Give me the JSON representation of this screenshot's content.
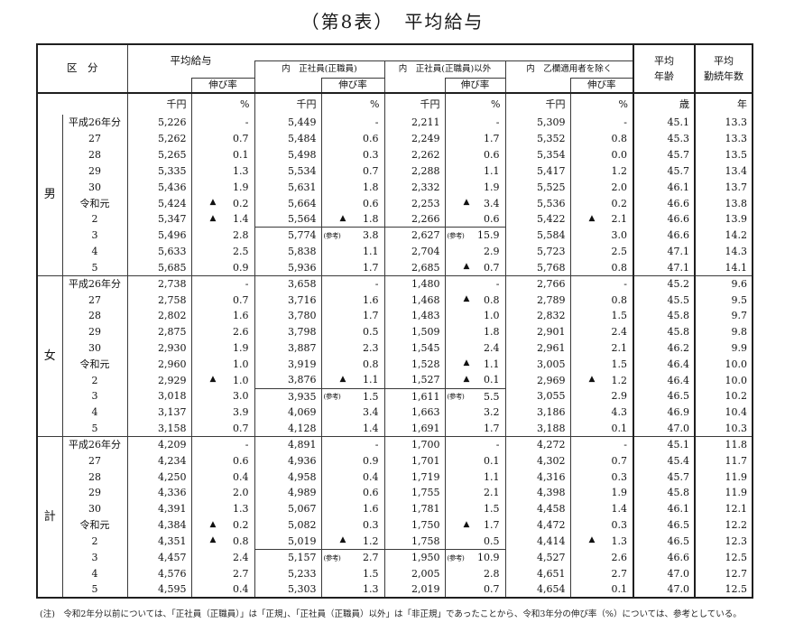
{
  "title": "（第8表）　平均給与",
  "table": {
    "header": {
      "kubun": "区　分",
      "groups": [
        {
          "label": "平均給与",
          "rate": "伸び率"
        },
        {
          "label": "内　正社員(正職員)",
          "rate": "伸び率"
        },
        {
          "label": "内　正社員(正職員)以外",
          "rate": "伸び率"
        },
        {
          "label": "内　乙欄適用者を除く",
          "rate": "伸び率"
        }
      ],
      "age": "平均\n年齢",
      "service": "平均\n勤続年数"
    },
    "units": [
      "千円",
      "%",
      "千円",
      "%",
      "千円",
      "%",
      "千円",
      "%",
      "歳",
      "年"
    ],
    "sections": [
      {
        "group": "男",
        "rows": [
          [
            "平成26年分",
            "5,226",
            "-",
            "5,449",
            "-",
            "2,211",
            "-",
            "5,309",
            "-",
            "45.1",
            "13.3"
          ],
          [
            "27",
            "5,262",
            "0.7",
            "5,484",
            "0.6",
            "2,249",
            "1.7",
            "5,352",
            "0.8",
            "45.3",
            "13.3"
          ],
          [
            "28",
            "5,265",
            "0.1",
            "5,498",
            "0.3",
            "2,262",
            "0.6",
            "5,354",
            "0.0",
            "45.7",
            "13.5"
          ],
          [
            "29",
            "5,335",
            "1.3",
            "5,534",
            "0.7",
            "2,288",
            "1.1",
            "5,417",
            "1.2",
            "45.7",
            "13.4"
          ],
          [
            "30",
            "5,436",
            "1.9",
            "5,631",
            "1.8",
            "2,332",
            "1.9",
            "5,525",
            "2.0",
            "46.1",
            "13.7"
          ],
          [
            "令和元",
            "5,424",
            "▲0.2",
            "5,664",
            "0.6",
            "2,253",
            "▲3.4",
            "5,536",
            "0.2",
            "46.6",
            "13.8"
          ],
          [
            "2",
            "5,347",
            "▲1.4",
            "5,564",
            "▲1.8",
            "2,266",
            "0.6",
            "5,422",
            "▲2.1",
            "46.6",
            "13.9"
          ],
          [
            "3",
            "5,496",
            "2.8",
            "5,774",
            "(参考)3.8",
            "2,627",
            "(参考)15.9",
            "5,584",
            "3.0",
            "46.6",
            "14.2"
          ],
          [
            "4",
            "5,633",
            "2.5",
            "5,838",
            "1.1",
            "2,704",
            "2.9",
            "5,723",
            "2.5",
            "47.1",
            "14.3"
          ],
          [
            "5",
            "5,685",
            "0.9",
            "5,936",
            "1.7",
            "2,685",
            "▲0.7",
            "5,768",
            "0.8",
            "47.1",
            "14.1"
          ]
        ]
      },
      {
        "group": "女",
        "rows": [
          [
            "平成26年分",
            "2,738",
            "-",
            "3,658",
            "-",
            "1,480",
            "-",
            "2,766",
            "-",
            "45.2",
            "9.6"
          ],
          [
            "27",
            "2,758",
            "0.7",
            "3,716",
            "1.6",
            "1,468",
            "▲0.8",
            "2,789",
            "0.8",
            "45.5",
            "9.5"
          ],
          [
            "28",
            "2,802",
            "1.6",
            "3,780",
            "1.7",
            "1,483",
            "1.0",
            "2,832",
            "1.5",
            "45.8",
            "9.7"
          ],
          [
            "29",
            "2,875",
            "2.6",
            "3,798",
            "0.5",
            "1,509",
            "1.8",
            "2,901",
            "2.4",
            "45.8",
            "9.8"
          ],
          [
            "30",
            "2,930",
            "1.9",
            "3,887",
            "2.3",
            "1,545",
            "2.4",
            "2,961",
            "2.1",
            "46.2",
            "9.9"
          ],
          [
            "令和元",
            "2,960",
            "1.0",
            "3,919",
            "0.8",
            "1,528",
            "▲1.1",
            "3,005",
            "1.5",
            "46.4",
            "10.0"
          ],
          [
            "2",
            "2,929",
            "▲1.0",
            "3,876",
            "▲1.1",
            "1,527",
            "▲0.1",
            "2,969",
            "▲1.2",
            "46.4",
            "10.0"
          ],
          [
            "3",
            "3,018",
            "3.0",
            "3,935",
            "(参考)1.5",
            "1,611",
            "(参考)5.5",
            "3,055",
            "2.9",
            "46.5",
            "10.2"
          ],
          [
            "4",
            "3,137",
            "3.9",
            "4,069",
            "3.4",
            "1,663",
            "3.2",
            "3,186",
            "4.3",
            "46.9",
            "10.4"
          ],
          [
            "5",
            "3,158",
            "0.7",
            "4,128",
            "1.4",
            "1,691",
            "1.7",
            "3,188",
            "0.1",
            "47.0",
            "10.3"
          ]
        ]
      },
      {
        "group": "計",
        "rows": [
          [
            "平成26年分",
            "4,209",
            "-",
            "4,891",
            "-",
            "1,700",
            "-",
            "4,272",
            "-",
            "45.1",
            "11.8"
          ],
          [
            "27",
            "4,234",
            "0.6",
            "4,936",
            "0.9",
            "1,701",
            "0.1",
            "4,302",
            "0.7",
            "45.4",
            "11.7"
          ],
          [
            "28",
            "4,250",
            "0.4",
            "4,958",
            "0.4",
            "1,719",
            "1.1",
            "4,316",
            "0.3",
            "45.7",
            "11.9"
          ],
          [
            "29",
            "4,336",
            "2.0",
            "4,989",
            "0.6",
            "1,755",
            "2.1",
            "4,398",
            "1.9",
            "45.8",
            "11.9"
          ],
          [
            "30",
            "4,391",
            "1.3",
            "5,067",
            "1.6",
            "1,781",
            "1.5",
            "4,458",
            "1.4",
            "46.1",
            "12.1"
          ],
          [
            "令和元",
            "4,384",
            "▲0.2",
            "5,082",
            "0.3",
            "1,750",
            "▲1.7",
            "4,472",
            "0.3",
            "46.5",
            "12.2"
          ],
          [
            "2",
            "4,351",
            "▲0.8",
            "5,019",
            "▲1.2",
            "1,758",
            "0.5",
            "4,414",
            "▲1.3",
            "46.5",
            "12.3"
          ],
          [
            "3",
            "4,457",
            "2.4",
            "5,157",
            "(参考)2.7",
            "1,950",
            "(参考)10.9",
            "4,527",
            "2.6",
            "46.6",
            "12.5"
          ],
          [
            "4",
            "4,576",
            "2.7",
            "5,233",
            "1.5",
            "2,005",
            "2.8",
            "4,651",
            "2.7",
            "47.0",
            "12.7"
          ],
          [
            "5",
            "4,595",
            "0.4",
            "5,303",
            "1.3",
            "2,019",
            "0.7",
            "4,654",
            "0.1",
            "47.0",
            "12.5"
          ]
        ]
      }
    ]
  },
  "footnote": "(注)　令和2年分以前については、「正社員（正職員）」は「正規」、「正社員（正職員）以外」は「非正規」であったことから、令和3年分の伸び率（%）については、参考としている。"
}
